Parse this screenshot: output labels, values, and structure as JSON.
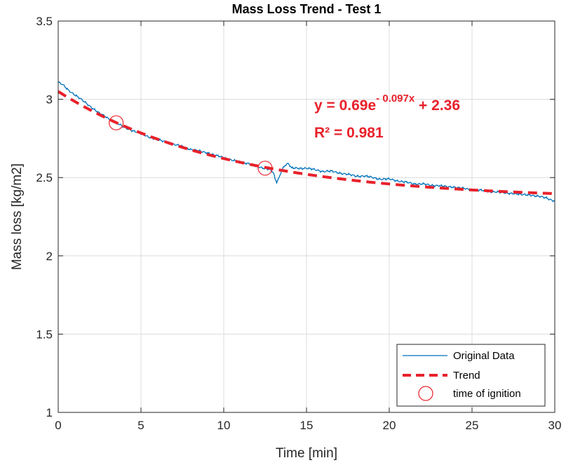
{
  "chart_data": {
    "type": "line",
    "title": "Mass Loss Trend - Test 1",
    "xlabel": "Time [min]",
    "ylabel": "Mass loss [kg/m2]",
    "xlim": [
      0,
      30
    ],
    "ylim": [
      1,
      3.5
    ],
    "xticks": [
      0,
      5,
      10,
      15,
      20,
      25,
      30
    ],
    "yticks": [
      1,
      1.5,
      2,
      2.5,
      3,
      3.5
    ],
    "xtick_labels": [
      "0",
      "5",
      "10",
      "15",
      "20",
      "25",
      "30"
    ],
    "ytick_labels": [
      "1",
      "1.5",
      "2",
      "2.5",
      "3",
      "3.5"
    ],
    "grid": true,
    "legend_position": "bottom-right",
    "series": [
      {
        "name": "Original Data",
        "style": "line",
        "color": "#0072BD",
        "x": [
          0,
          0.3,
          0.6,
          1,
          1.5,
          2,
          2.5,
          3,
          3.5,
          4,
          4.5,
          5,
          5.5,
          6,
          6.5,
          7,
          7.5,
          8,
          8.5,
          9,
          9.5,
          10,
          10.5,
          11,
          11.5,
          12,
          12.5,
          12.8,
          13.0,
          13.1,
          13.2,
          13.35,
          13.5,
          13.7,
          13.9,
          14.1,
          14.5,
          15,
          15.5,
          16,
          16.5,
          17,
          17.5,
          18,
          18.5,
          19,
          19.5,
          20,
          20.5,
          21,
          21.5,
          22,
          22.5,
          23,
          23.5,
          24,
          24.5,
          25,
          25.5,
          26,
          26.5,
          27,
          27.5,
          28,
          28.5,
          29,
          29.5,
          30
        ],
        "y": [
          3.11,
          3.09,
          3.06,
          3.03,
          2.99,
          2.95,
          2.91,
          2.88,
          2.85,
          2.82,
          2.8,
          2.78,
          2.76,
          2.74,
          2.73,
          2.71,
          2.7,
          2.68,
          2.67,
          2.66,
          2.64,
          2.63,
          2.61,
          2.6,
          2.59,
          2.57,
          2.56,
          2.55,
          2.53,
          2.49,
          2.47,
          2.5,
          2.55,
          2.58,
          2.59,
          2.56,
          2.56,
          2.56,
          2.55,
          2.54,
          2.54,
          2.53,
          2.52,
          2.51,
          2.51,
          2.5,
          2.49,
          2.49,
          2.48,
          2.47,
          2.46,
          2.46,
          2.45,
          2.45,
          2.44,
          2.44,
          2.43,
          2.42,
          2.42,
          2.41,
          2.41,
          2.4,
          2.4,
          2.39,
          2.39,
          2.38,
          2.37,
          2.35
        ]
      },
      {
        "name": "Trend",
        "style": "dashed",
        "color": "#E8212B",
        "equation": {
          "a": 0.69,
          "b": -0.097,
          "c": 2.36
        }
      },
      {
        "name": "time of ignition",
        "style": "marker-circle",
        "color": "#E8212B",
        "x": [
          3.5,
          12.5
        ],
        "y": [
          2.85,
          2.56
        ]
      }
    ],
    "annotations": {
      "equation_prefix": "y = 0.69e",
      "equation_exponent": "- 0.097x",
      "equation_suffix": " + 2.36",
      "r_squared": "R² = 0.981",
      "color": "#E8212B"
    }
  }
}
